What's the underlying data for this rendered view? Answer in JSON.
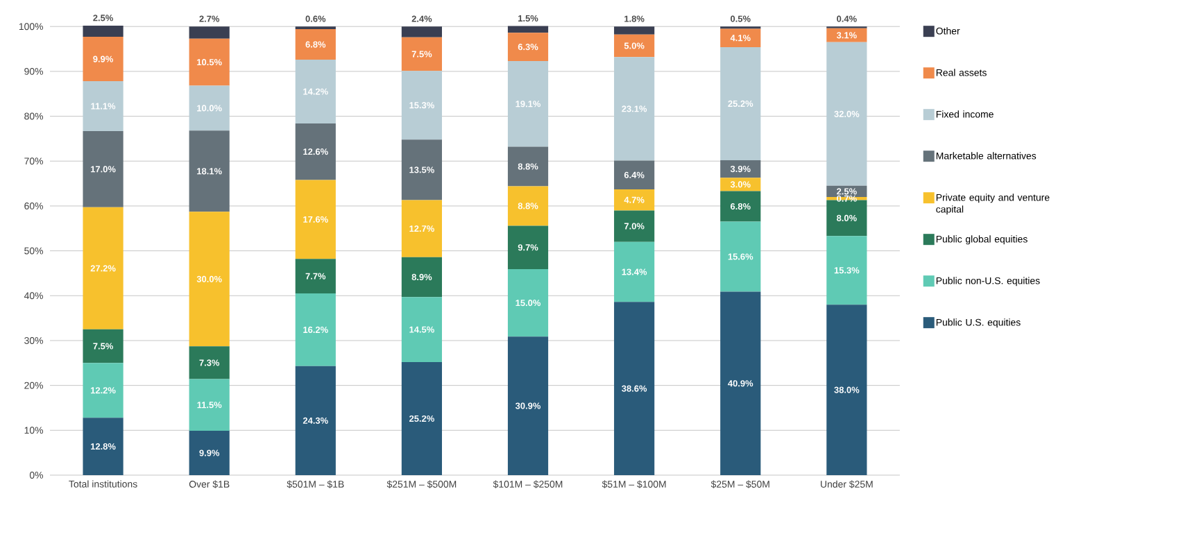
{
  "chart_data": {
    "type": "bar",
    "stacked": true,
    "grid": "y",
    "legend": "right",
    "categories": [
      "Total institutions",
      "Over $1B",
      "$501M – $1B",
      "$251M – $500M",
      "$101M – $250M",
      "$51M – $100M",
      "$25M – $50M",
      "Under $25M"
    ],
    "ylim": [
      0,
      100.5
    ],
    "yticks": [
      {
        "value": 0,
        "label": "0%"
      },
      {
        "value": 10,
        "label": "10%"
      },
      {
        "value": 20,
        "label": "20%"
      },
      {
        "value": 30,
        "label": "30%"
      },
      {
        "value": 40,
        "label": "40%"
      },
      {
        "value": 50,
        "label": "50%"
      },
      {
        "value": 60,
        "label": "60%"
      },
      {
        "value": 70,
        "label": "70%"
      },
      {
        "value": 80,
        "label": "80%"
      },
      {
        "value": 90,
        "label": "90%"
      },
      {
        "value": 100,
        "label": "100%"
      }
    ],
    "series": [
      {
        "name": "Public U.S. equities",
        "color": "#2a5b7a",
        "values": [
          12.8,
          9.9,
          24.3,
          25.2,
          30.9,
          38.6,
          40.9,
          38.0
        ],
        "value_labels": [
          "12.8%",
          "9.9%",
          "24.3%",
          "25.2%",
          "30.9%",
          "38.6%",
          "40.9%",
          "38.0%"
        ]
      },
      {
        "name": "Public non-U.S. equities",
        "color": "#5fcab4",
        "values": [
          12.2,
          11.5,
          16.2,
          14.5,
          15.0,
          13.4,
          15.6,
          15.3
        ],
        "value_labels": [
          "12.2%",
          "11.5%",
          "16.2%",
          "14.5%",
          "15.0%",
          "13.4%",
          "15.6%",
          "15.3%"
        ]
      },
      {
        "name": "Public global equities",
        "color": "#2b7a5a",
        "values": [
          7.5,
          7.3,
          7.7,
          8.9,
          9.7,
          7.0,
          6.8,
          8.0
        ],
        "value_labels": [
          "7.5%",
          "7.3%",
          "7.7%",
          "8.9%",
          "9.7%",
          "7.0%",
          "6.8%",
          "8.0%"
        ]
      },
      {
        "name": "Private equity and venture capital",
        "color": "#f7c12d",
        "values": [
          27.2,
          30.0,
          17.6,
          12.7,
          8.8,
          4.7,
          3.0,
          0.7
        ],
        "value_labels": [
          "27.2%",
          "30.0%",
          "17.6%",
          "12.7%",
          "8.8%",
          "4.7%",
          "3.0%",
          "0.7%"
        ]
      },
      {
        "name": "Marketable alternatives",
        "color": "#65727a",
        "values": [
          17.0,
          18.1,
          12.6,
          13.5,
          8.8,
          6.4,
          3.9,
          2.5
        ],
        "value_labels": [
          "17.0%",
          "18.1%",
          "12.6%",
          "13.5%",
          "8.8%",
          "6.4%",
          "3.9%",
          "2.5%"
        ]
      },
      {
        "name": "Fixed income",
        "color": "#b8cdd5",
        "values": [
          11.1,
          10.0,
          14.2,
          15.3,
          19.1,
          23.1,
          25.2,
          32.0
        ],
        "value_labels": [
          "11.1%",
          "10.0%",
          "14.2%",
          "15.3%",
          "19.1%",
          "23.1%",
          "25.2%",
          "32.0%"
        ]
      },
      {
        "name": "Real assets",
        "color": "#f08a4b",
        "values": [
          9.9,
          10.5,
          6.8,
          7.5,
          6.3,
          5.0,
          4.1,
          3.1
        ],
        "value_labels": [
          "9.9%",
          "10.5%",
          "6.8%",
          "7.5%",
          "6.3%",
          "5.0%",
          "4.1%",
          "3.1%"
        ]
      },
      {
        "name": "Other",
        "color": "#3a3f52",
        "values": [
          2.5,
          2.7,
          0.6,
          2.4,
          1.5,
          1.8,
          0.5,
          0.4
        ],
        "value_labels": [
          "2.5%",
          "2.7%",
          "0.6%",
          "2.4%",
          "1.5%",
          "1.8%",
          "0.5%",
          "0.4%"
        ]
      }
    ]
  }
}
